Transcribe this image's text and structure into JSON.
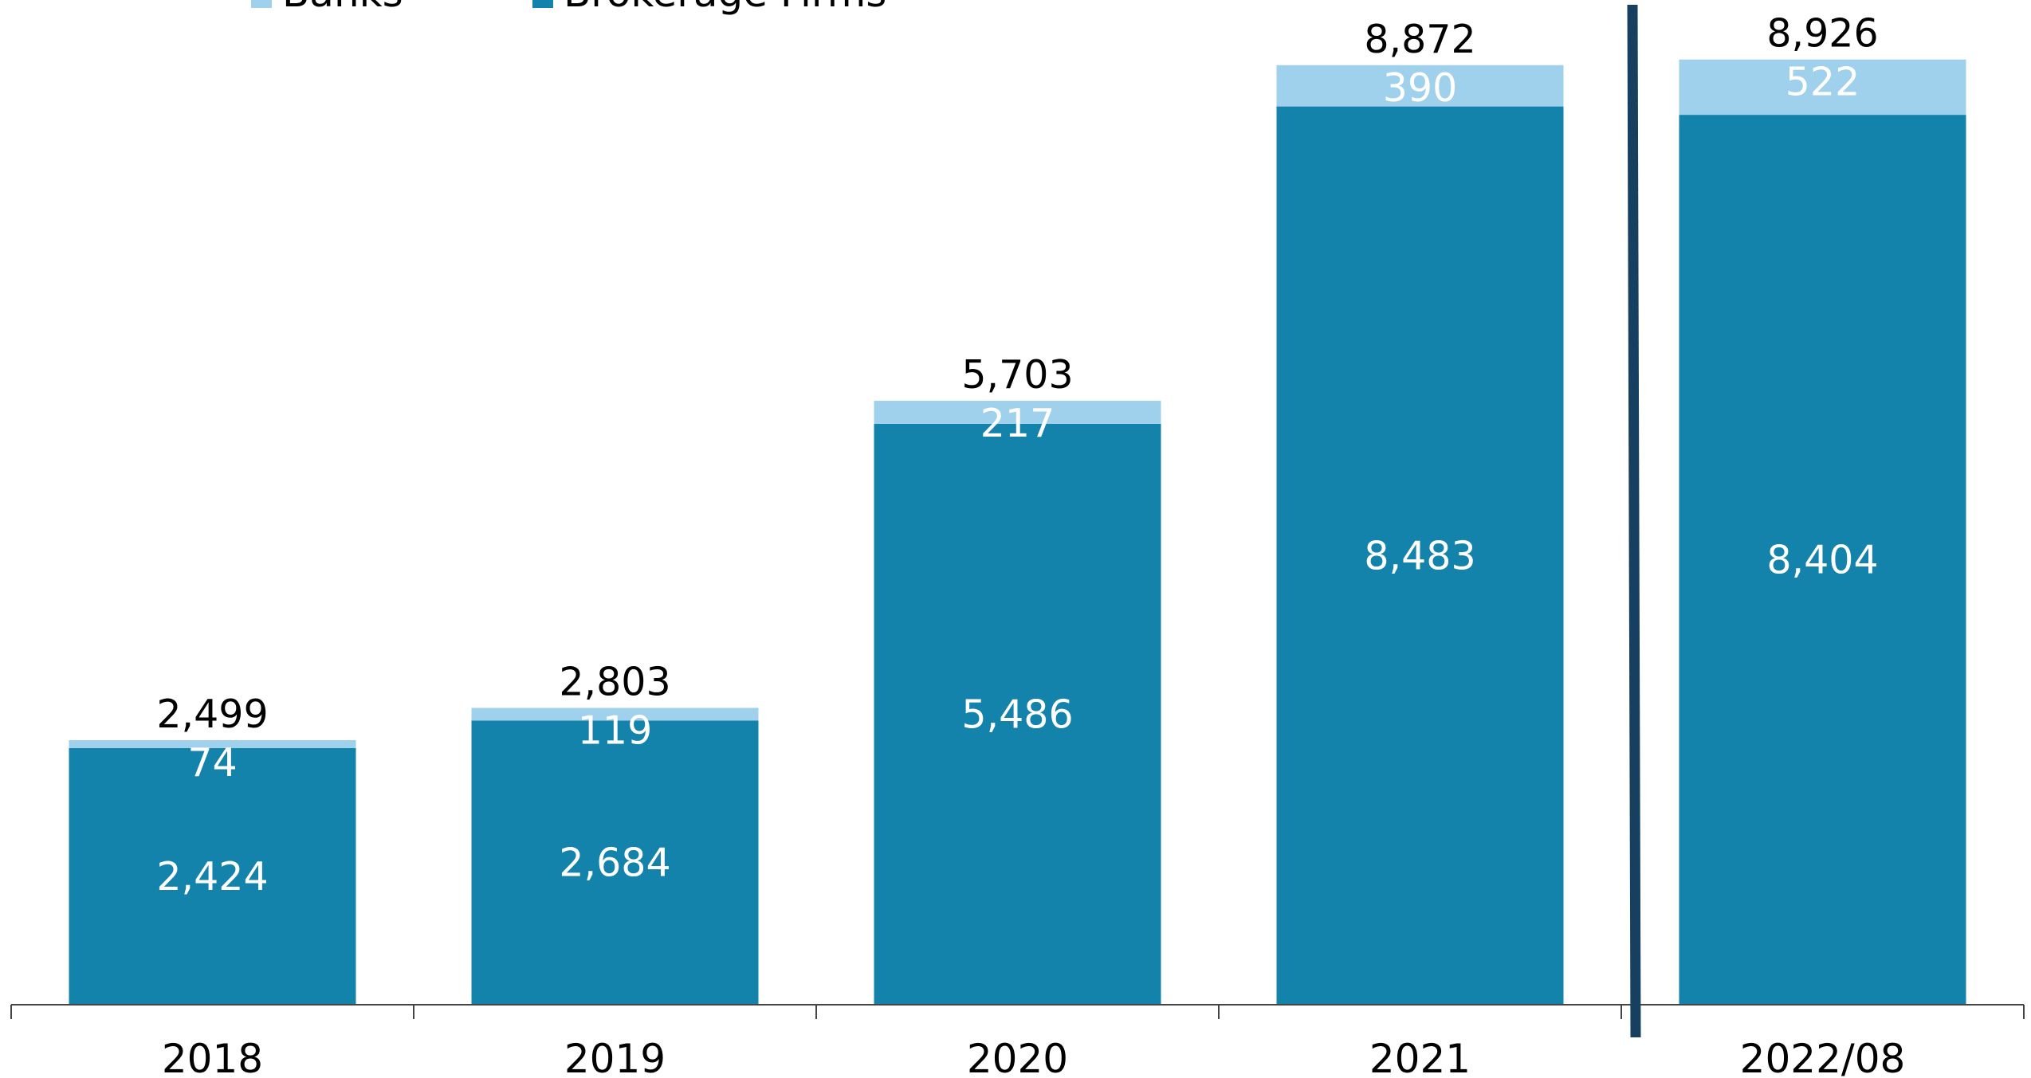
{
  "colors": {
    "banks": "#9fd0ec",
    "brokerage": "#1483ab",
    "axis": "#444444",
    "divider": "#173f5f"
  },
  "chart_data": {
    "type": "bar",
    "stacked": true,
    "categories": [
      "2018",
      "2019",
      "2020",
      "2021",
      "2022/08"
    ],
    "series": [
      {
        "name": "Brokerage Firms",
        "values": [
          2424,
          2684,
          5486,
          8483,
          8404
        ]
      },
      {
        "name": "Banks",
        "values": [
          74,
          119,
          217,
          390,
          522
        ]
      }
    ],
    "totals": [
      "2,499",
      "2,803",
      "5,703",
      "8,872",
      "8,926"
    ],
    "value_labels": {
      "Brokerage Firms": [
        "2,424",
        "2,684",
        "5,486",
        "8,483",
        "8,404"
      ],
      "Banks": [
        "74",
        "119",
        "217",
        "390",
        "522"
      ]
    },
    "legend": [
      "Banks",
      "Brokerage Firms"
    ],
    "legend_position": "top-left",
    "divider_between": [
      "2021",
      "2022/08"
    ],
    "ylim": [
      0,
      9500
    ],
    "grid": false,
    "title": "",
    "xlabel": "",
    "ylabel": ""
  }
}
